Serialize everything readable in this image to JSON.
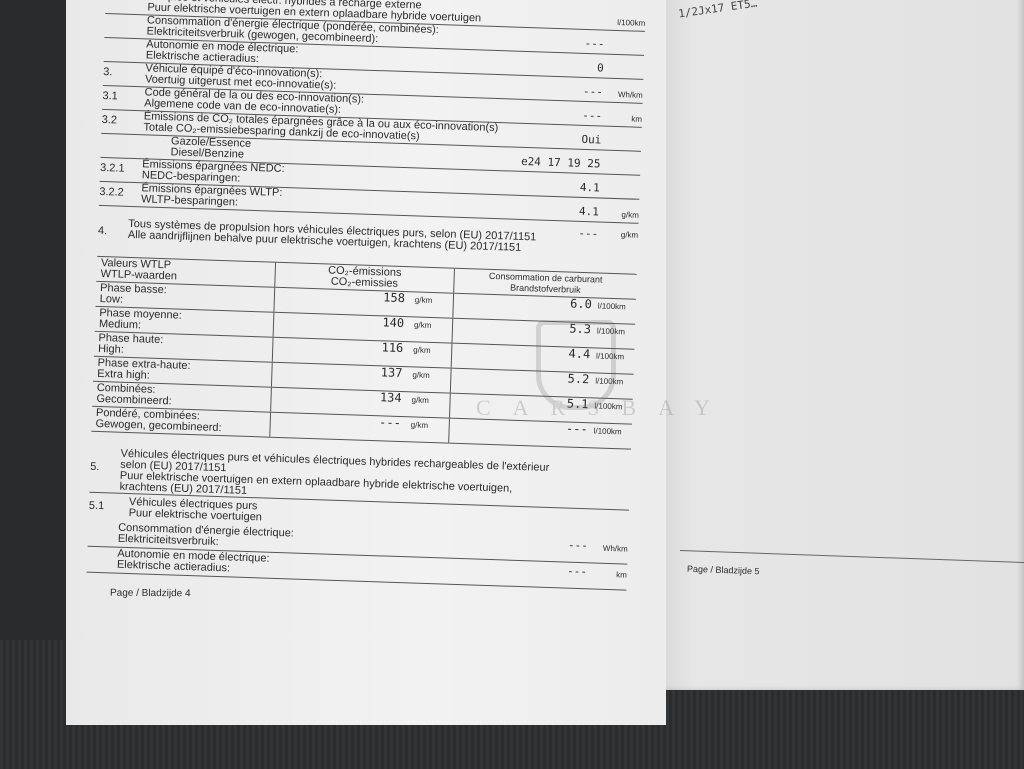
{
  "left_page": {
    "rows": [
      {
        "num": "",
        "fr": "…mples et véhicules électr. hybrides à recharge externe",
        "nl": "Puur elektrische voertuigen en extern oplaadbare hybride voertuigen",
        "value": "",
        "unit": "l/100km"
      },
      {
        "num": "",
        "fr": "Consommation d'énergie électrique (pondérée, combinées):",
        "nl": "Elektriciteitsverbruik (gewogen, gecombineerd):",
        "value": "---",
        "unit": ""
      },
      {
        "num": "",
        "fr": "Autonomie en mode électrique:",
        "nl": "Elektrische actieradius:",
        "value": "0",
        "unit": ""
      },
      {
        "num": "3.",
        "fr": "Véhicule équipé d'éco-innovation(s):",
        "nl": "Voertuig uitgerust met eco-innovatie(s):",
        "value": "---",
        "unit": "Wh/km"
      },
      {
        "num": "3.1",
        "fr": "Code général de la ou des eco-innovation(s):",
        "nl": "Algemene code van de eco-innovatie(s):",
        "value": "---",
        "unit": "km"
      },
      {
        "num": "3.2",
        "fr": "Émissions de CO₂ totales épargnées grâce à la ou aux éco-innovation(s)",
        "nl": "Totale CO₂-emissiebesparing dankzij de eco-innovatie(s)",
        "value": "Oui",
        "unit": ""
      },
      {
        "num": "",
        "fr": "Gazole/Essence",
        "nl": "Diesel/Benzine",
        "value": "e24 17 19 25",
        "unit": ""
      },
      {
        "num": "3.2.1",
        "fr": "Émissions épargnées NEDC:",
        "nl": "NEDC-besparingen:",
        "value": "4.1",
        "unit": ""
      },
      {
        "num": "3.2.2",
        "fr": "Émissions épargnées WLTP:",
        "nl": "WLTP-besparingen:",
        "value": "4.1",
        "unit": "g/km"
      }
    ],
    "extra_value": {
      "value": "---",
      "unit": "g/km"
    },
    "section4": {
      "num": "4.",
      "fr": "Tous systèmes de propulsion hors véhicules électriques purs, selon (EU) 2017/1151",
      "nl": "Alle aandrijflijnen behalve puur elektrische voertuigen, krachtens (EU) 2017/1151"
    },
    "wltp_table": {
      "headers": {
        "col1_fr": "Valeurs WTLP",
        "col1_nl": "WTLP-waarden",
        "col2_fr": "CO₂-émissions",
        "col2_nl": "CO₂-emissies",
        "col3_fr": "Consommation de carburant",
        "col3_nl": "Brandstofverbruik"
      },
      "rows": [
        {
          "fr": "Phase basse:",
          "nl": "Low:",
          "co2": "158",
          "co2_unit": "g/km",
          "fuel": "6.0",
          "fuel_unit": "l/100km"
        },
        {
          "fr": "Phase moyenne:",
          "nl": "Medium:",
          "co2": "140",
          "co2_unit": "g/km",
          "fuel": "5.3",
          "fuel_unit": "l/100km"
        },
        {
          "fr": "Phase haute:",
          "nl": "High:",
          "co2": "116",
          "co2_unit": "g/km",
          "fuel": "4.4",
          "fuel_unit": "l/100km"
        },
        {
          "fr": "Phase extra-haute:",
          "nl": "Extra high:",
          "co2": "137",
          "co2_unit": "g/km",
          "fuel": "5.2",
          "fuel_unit": "l/100km"
        },
        {
          "fr": "Combinées:",
          "nl": "Gecombineerd:",
          "co2": "134",
          "co2_unit": "g/km",
          "fuel": "5.1",
          "fuel_unit": "l/100km"
        },
        {
          "fr": "Pondéré, combinées:",
          "nl": "Gewogen, gecombineerd:",
          "co2": "---",
          "co2_unit": "g/km",
          "fuel": "---",
          "fuel_unit": "l/100km"
        }
      ]
    },
    "section5": {
      "num": "5.",
      "fr": "Véhicules électriques purs et véhicules électriques hybrides rechargeables de l'extérieur selon (EU) 2017/1151",
      "nl": "Puur elektrische voertuigen en extern oplaadbare hybride elektrische voertuigen, krachtens (EU) 2017/1151"
    },
    "section51": {
      "num": "5.1",
      "fr": "Véhicules électriques purs",
      "nl": "Puur elektrische voertuigen"
    },
    "ev_rows": [
      {
        "fr": "Consommation d'énergie électrique:",
        "nl": "Elektriciteitsverbruik:",
        "value": "---",
        "unit": "Wh/km"
      },
      {
        "fr": "Autonomie en mode électrique:",
        "nl": "Elektrische actieradius:",
        "value": "---",
        "unit": "km"
      }
    ],
    "footer": "Page / Bladzijde 4"
  },
  "right_page": {
    "code": "1/2Jx17 ET5…",
    "footer": "Page / Bladzijde 5"
  },
  "watermark": {
    "text": "CARSBAY"
  }
}
